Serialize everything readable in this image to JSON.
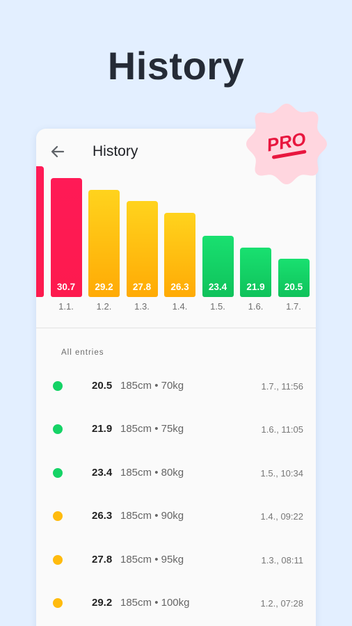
{
  "hero": {
    "title": "History"
  },
  "appbar": {
    "title": "History",
    "back_icon": "arrow-left-icon"
  },
  "badge": {
    "label": "PRO"
  },
  "colors": {
    "red": "#fe1952",
    "orange": "#ffbb0e",
    "green": "#15d366",
    "badge_bg": "#ffd6df",
    "badge_text": "#e8173f"
  },
  "chart_data": {
    "type": "bar",
    "categories": [
      "",
      "1.1.",
      "1.2.",
      "1.3.",
      "1.4.",
      "1.5.",
      "1.6.",
      "1.7."
    ],
    "values": [
      32.2,
      30.7,
      29.2,
      27.8,
      26.3,
      23.4,
      21.9,
      20.5
    ],
    "labels": [
      "",
      "30.7",
      "29.2",
      "27.8",
      "26.3",
      "23.4",
      "21.9",
      "20.5"
    ],
    "bar_colors": [
      "red",
      "red",
      "orange",
      "orange",
      "orange",
      "green",
      "green",
      "green"
    ],
    "title": "",
    "xlabel": "",
    "ylabel": ""
  },
  "list": {
    "section_label": "All entries",
    "entries": [
      {
        "bmi": "20.5",
        "detail": "185cm • 70kg",
        "time": "1.7., 11:56",
        "status": "green"
      },
      {
        "bmi": "21.9",
        "detail": "185cm • 75kg",
        "time": "1.6., 11:05",
        "status": "green"
      },
      {
        "bmi": "23.4",
        "detail": "185cm • 80kg",
        "time": "1.5., 10:34",
        "status": "green"
      },
      {
        "bmi": "26.3",
        "detail": "185cm • 90kg",
        "time": "1.4., 09:22",
        "status": "orange"
      },
      {
        "bmi": "27.8",
        "detail": "185cm • 95kg",
        "time": "1.3., 08:11",
        "status": "orange"
      },
      {
        "bmi": "29.2",
        "detail": "185cm • 100kg",
        "time": "1.2., 07:28",
        "status": "orange"
      }
    ]
  }
}
